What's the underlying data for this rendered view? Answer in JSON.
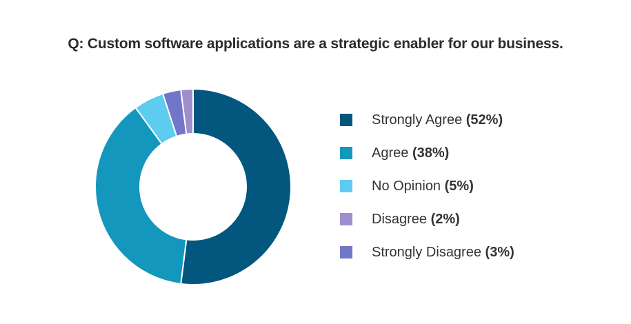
{
  "chart_data": {
    "type": "pie",
    "title": "Q: Custom software applications are a strategic enabler for our business.",
    "donut": true,
    "categories": [
      "Strongly Agree",
      "Agree",
      "No Opinion",
      "Disagree",
      "Strongly Disagree"
    ],
    "values": [
      52,
      38,
      5,
      2,
      3
    ],
    "value_labels": [
      "(52%)",
      "(38%)",
      "(5%)",
      "(2%)",
      "(3%)"
    ],
    "colors": [
      "#03567D",
      "#1497BD",
      "#5CCDEE",
      "#9D8FCB",
      "#7276C8"
    ],
    "slice_order": [
      0,
      1,
      2,
      4,
      3
    ],
    "legend_position": "right"
  }
}
